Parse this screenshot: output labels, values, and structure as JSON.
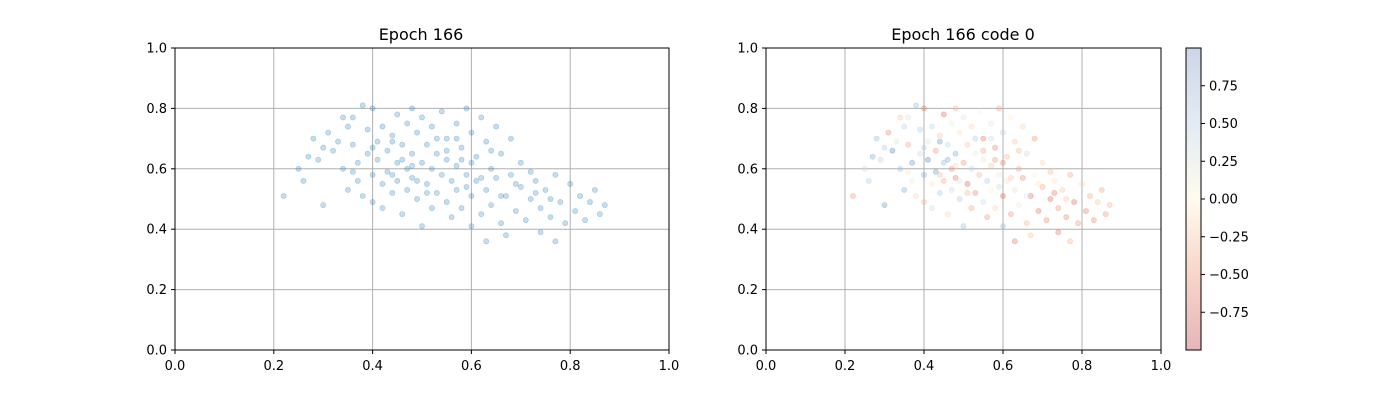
{
  "chart_data": [
    {
      "type": "scatter",
      "title": "Epoch 166",
      "xlabel": "",
      "ylabel": "",
      "xlim": [
        0.0,
        1.0
      ],
      "ylim": [
        0.0,
        1.0
      ],
      "xticks": [
        "0.0",
        "0.2",
        "0.4",
        "0.6",
        "0.8",
        "1.0"
      ],
      "yticks": [
        "0.0",
        "0.2",
        "0.4",
        "0.6",
        "0.8",
        "1.0"
      ],
      "grid": true,
      "point_color": "#1f77b4",
      "point_alpha": 0.25,
      "points_note": "points shared with panel 2 (chart_data[1].points)"
    },
    {
      "type": "scatter",
      "title": "Epoch 166 code 0",
      "xlabel": "",
      "ylabel": "",
      "xlim": [
        0.0,
        1.0
      ],
      "ylim": [
        0.0,
        1.0
      ],
      "xticks": [
        "0.0",
        "0.2",
        "0.4",
        "0.6",
        "0.8",
        "1.0"
      ],
      "yticks": [
        "0.0",
        "0.2",
        "0.4",
        "0.6",
        "0.8",
        "1.0"
      ],
      "grid": true,
      "colormap": "RdYlBu-like",
      "colorbar": {
        "range": [
          -1.0,
          1.0
        ],
        "ticks": [
          "0.75",
          "0.50",
          "0.25",
          "0.00",
          "−0.25",
          "−0.50",
          "−0.75"
        ],
        "tick_values": [
          0.75,
          0.5,
          0.25,
          0.0,
          -0.25,
          -0.5,
          -0.75
        ]
      },
      "points": [
        [
          0.22,
          0.51,
          -0.6
        ],
        [
          0.25,
          0.6,
          0.3
        ],
        [
          0.26,
          0.56,
          0.5
        ],
        [
          0.27,
          0.64,
          0.7
        ],
        [
          0.28,
          0.7,
          0.6
        ],
        [
          0.29,
          0.63,
          0.4
        ],
        [
          0.3,
          0.48,
          0.8
        ],
        [
          0.3,
          0.67,
          0.5
        ],
        [
          0.31,
          0.72,
          -0.7
        ],
        [
          0.32,
          0.66,
          0.9
        ],
        [
          0.33,
          0.69,
          0.2
        ],
        [
          0.34,
          0.6,
          0.6
        ],
        [
          0.34,
          0.77,
          -0.3
        ],
        [
          0.35,
          0.74,
          0.4
        ],
        [
          0.35,
          0.53,
          0.7
        ],
        [
          0.36,
          0.77,
          0.2
        ],
        [
          0.36,
          0.68,
          -0.5
        ],
        [
          0.37,
          0.62,
          0.8
        ],
        [
          0.37,
          0.56,
          0.1
        ],
        [
          0.38,
          0.51,
          -0.2
        ],
        [
          0.38,
          0.81,
          0.6
        ],
        [
          0.39,
          0.65,
          0.3
        ],
        [
          0.39,
          0.73,
          0.5
        ],
        [
          0.4,
          0.49,
          -0.4
        ],
        [
          0.4,
          0.58,
          0.7
        ],
        [
          0.4,
          0.8,
          -0.8
        ],
        [
          0.41,
          0.69,
          0.2
        ],
        [
          0.41,
          0.63,
          0.9
        ],
        [
          0.42,
          0.55,
          -0.1
        ],
        [
          0.42,
          0.74,
          0.4
        ],
        [
          0.42,
          0.47,
          0.3
        ],
        [
          0.43,
          0.66,
          -0.6
        ],
        [
          0.43,
          0.59,
          0.8
        ],
        [
          0.44,
          0.71,
          -0.3
        ],
        [
          0.44,
          0.52,
          0.5
        ],
        [
          0.45,
          0.78,
          -0.9
        ],
        [
          0.45,
          0.62,
          0.6
        ],
        [
          0.45,
          0.56,
          -0.5
        ],
        [
          0.46,
          0.68,
          0.4
        ],
        [
          0.46,
          0.45,
          -0.2
        ],
        [
          0.47,
          0.75,
          0.1
        ],
        [
          0.47,
          0.6,
          -0.7
        ],
        [
          0.47,
          0.53,
          0.3
        ],
        [
          0.48,
          0.8,
          -0.4
        ],
        [
          0.48,
          0.65,
          0.7
        ],
        [
          0.48,
          0.57,
          -0.8
        ],
        [
          0.49,
          0.72,
          -0.1
        ],
        [
          0.49,
          0.5,
          0.5
        ],
        [
          0.5,
          0.62,
          -0.6
        ],
        [
          0.5,
          0.77,
          0.2
        ],
        [
          0.5,
          0.41,
          0.6
        ],
        [
          0.51,
          0.68,
          -0.3
        ],
        [
          0.51,
          0.55,
          -0.9
        ],
        [
          0.52,
          0.6,
          0.4
        ],
        [
          0.52,
          0.47,
          -0.5
        ],
        [
          0.52,
          0.74,
          -0.2
        ],
        [
          0.53,
          0.65,
          0.1
        ],
        [
          0.53,
          0.52,
          -0.7
        ],
        [
          0.54,
          0.79,
          0.0
        ],
        [
          0.54,
          0.58,
          -0.4
        ],
        [
          0.55,
          0.7,
          -0.8
        ],
        [
          0.55,
          0.49,
          0.3
        ],
        [
          0.55,
          0.63,
          -0.1
        ],
        [
          0.56,
          0.56,
          0.5
        ],
        [
          0.56,
          0.44,
          -0.6
        ],
        [
          0.57,
          0.75,
          0.2
        ],
        [
          0.57,
          0.61,
          -0.3
        ],
        [
          0.57,
          0.53,
          0.0
        ],
        [
          0.58,
          0.67,
          -0.7
        ],
        [
          0.58,
          0.47,
          -0.2
        ],
        [
          0.59,
          0.8,
          -0.5
        ],
        [
          0.59,
          0.58,
          0.1
        ],
        [
          0.6,
          0.72,
          0.4
        ],
        [
          0.6,
          0.51,
          -0.9
        ],
        [
          0.6,
          0.41,
          0.6
        ],
        [
          0.61,
          0.64,
          -0.4
        ],
        [
          0.61,
          0.56,
          -0.1
        ],
        [
          0.62,
          0.77,
          0.0
        ],
        [
          0.62,
          0.45,
          -0.6
        ],
        [
          0.63,
          0.69,
          -0.3
        ],
        [
          0.63,
          0.53,
          0.2
        ],
        [
          0.63,
          0.36,
          -0.8
        ],
        [
          0.64,
          0.6,
          -0.5
        ],
        [
          0.64,
          0.48,
          0.1
        ],
        [
          0.65,
          0.74,
          -0.2
        ],
        [
          0.65,
          0.57,
          -0.7
        ],
        [
          0.66,
          0.42,
          -0.4
        ],
        [
          0.66,
          0.65,
          0.3
        ],
        [
          0.67,
          0.51,
          -0.9
        ],
        [
          0.67,
          0.38,
          -0.3
        ],
        [
          0.68,
          0.7,
          -0.6
        ],
        [
          0.68,
          0.58,
          0.0
        ],
        [
          0.69,
          0.46,
          -0.8
        ],
        [
          0.7,
          0.62,
          -0.2
        ],
        [
          0.7,
          0.54,
          -0.5
        ],
        [
          0.71,
          0.43,
          -0.7
        ],
        [
          0.72,
          0.59,
          -0.4
        ],
        [
          0.72,
          0.5,
          -0.9
        ],
        [
          0.73,
          0.56,
          -0.1
        ],
        [
          0.74,
          0.47,
          -0.6
        ],
        [
          0.74,
          0.39,
          -0.8
        ],
        [
          0.75,
          0.53,
          -0.3
        ],
        [
          0.76,
          0.44,
          -0.7
        ],
        [
          0.77,
          0.58,
          -0.5
        ],
        [
          0.77,
          0.36,
          -0.4
        ],
        [
          0.78,
          0.49,
          -0.9
        ],
        [
          0.79,
          0.42,
          -0.6
        ],
        [
          0.8,
          0.55,
          -0.2
        ],
        [
          0.81,
          0.46,
          -0.8
        ],
        [
          0.82,
          0.51,
          -0.5
        ],
        [
          0.83,
          0.43,
          -0.7
        ],
        [
          0.84,
          0.49,
          -0.3
        ],
        [
          0.86,
          0.45,
          -0.6
        ],
        [
          0.87,
          0.48,
          -0.4
        ],
        [
          0.85,
          0.53,
          -0.5
        ],
        [
          0.46,
          0.63,
          0.7
        ],
        [
          0.44,
          0.58,
          -0.4
        ],
        [
          0.53,
          0.7,
          0.5
        ],
        [
          0.58,
          0.63,
          -0.6
        ],
        [
          0.49,
          0.56,
          0.2
        ],
        [
          0.62,
          0.57,
          -0.3
        ],
        [
          0.66,
          0.51,
          0.2
        ],
        [
          0.4,
          0.67,
          0.5
        ],
        [
          0.36,
          0.59,
          -0.1
        ],
        [
          0.51,
          0.52,
          -0.4
        ],
        [
          0.57,
          0.7,
          0.3
        ],
        [
          0.6,
          0.62,
          -0.7
        ],
        [
          0.69,
          0.55,
          -0.1
        ],
        [
          0.73,
          0.52,
          -0.8
        ],
        [
          0.76,
          0.5,
          -0.3
        ],
        [
          0.44,
          0.69,
          0.8
        ],
        [
          0.48,
          0.61,
          -0.2
        ],
        [
          0.55,
          0.66,
          -0.5
        ],
        [
          0.59,
          0.54,
          0.3
        ],
        [
          0.64,
          0.66,
          -0.4
        ]
      ]
    }
  ]
}
